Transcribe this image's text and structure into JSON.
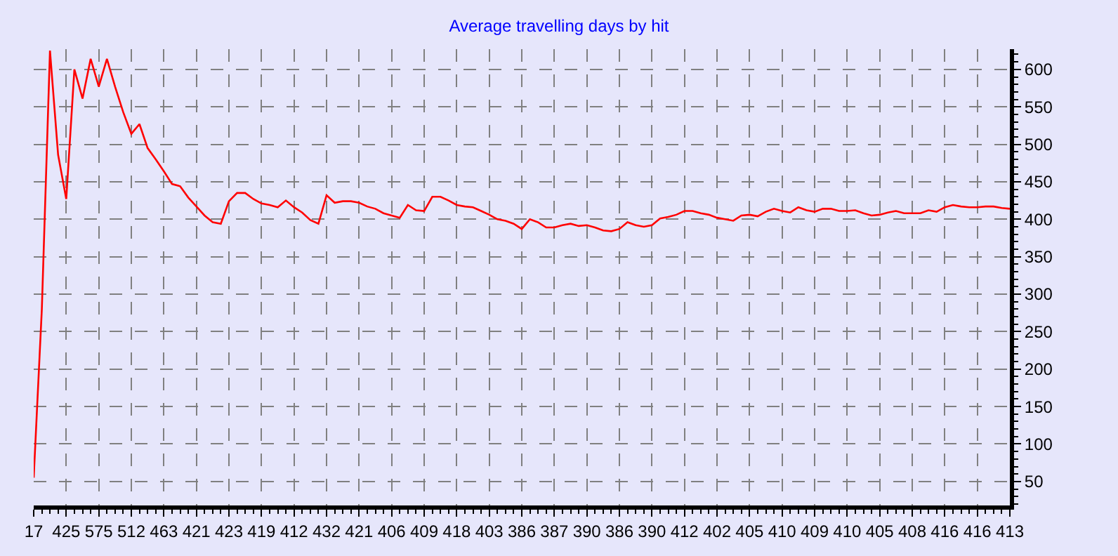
{
  "chart_data": {
    "type": "line",
    "title": "Average travelling days by hit",
    "categories": [
      "17",
      null,
      null,
      null,
      "425",
      null,
      null,
      null,
      "575",
      null,
      null,
      null,
      "512",
      null,
      null,
      null,
      "463",
      null,
      null,
      null,
      "421",
      null,
      null,
      null,
      "423",
      null,
      null,
      null,
      "419",
      null,
      null,
      null,
      "412",
      null,
      null,
      null,
      "432",
      null,
      null,
      null,
      "421",
      null,
      null,
      null,
      "406",
      null,
      null,
      null,
      "409",
      null,
      null,
      null,
      "418",
      null,
      null,
      null,
      "403",
      null,
      null,
      null,
      "386",
      null,
      null,
      null,
      "387",
      null,
      null,
      null,
      "390",
      null,
      null,
      null,
      "386",
      null,
      null,
      null,
      "390",
      null,
      null,
      null,
      "412",
      null,
      null,
      null,
      "402",
      null,
      null,
      null,
      "405",
      null,
      null,
      null,
      "410",
      null,
      null,
      null,
      "409",
      null,
      null,
      null,
      "410",
      null,
      null,
      null,
      "405",
      null,
      null,
      null,
      "408",
      null,
      null,
      null,
      "416",
      null,
      null,
      null,
      "416",
      null,
      null,
      null,
      "413"
    ],
    "series": [
      {
        "color": "#ff0000",
        "values": [
          55,
          280,
          625,
          486,
          427,
          600,
          561,
          614,
          577,
          614,
          577,
          543,
          514,
          527,
          495,
          480,
          464,
          447,
          444,
          429,
          417,
          405,
          396,
          394,
          424,
          435,
          435,
          427,
          421,
          419,
          416,
          425,
          416,
          409,
          399,
          394,
          432,
          422,
          424,
          424,
          422,
          417,
          414,
          408,
          405,
          402,
          419,
          412,
          411,
          430,
          430,
          425,
          419,
          417,
          416,
          411,
          406,
          400,
          398,
          394,
          387,
          400,
          396,
          389,
          389,
          392,
          394,
          391,
          392,
          389,
          385,
          384,
          387,
          396,
          392,
          390,
          392,
          401,
          403,
          406,
          411,
          411,
          408,
          406,
          402,
          400,
          398,
          405,
          406,
          404,
          410,
          414,
          411,
          409,
          416,
          412,
          410,
          414,
          414,
          411,
          411,
          412,
          408,
          405,
          406,
          409,
          411,
          408,
          408,
          408,
          412,
          410,
          416,
          419,
          417,
          416,
          416,
          417,
          417,
          415,
          414
        ]
      }
    ],
    "ylim": [
      18,
      627
    ],
    "yticks": [
      50,
      100,
      150,
      200,
      250,
      300,
      350,
      400,
      450,
      500,
      550,
      600
    ],
    "grid": true,
    "marker": "none",
    "line_style": "solid"
  }
}
